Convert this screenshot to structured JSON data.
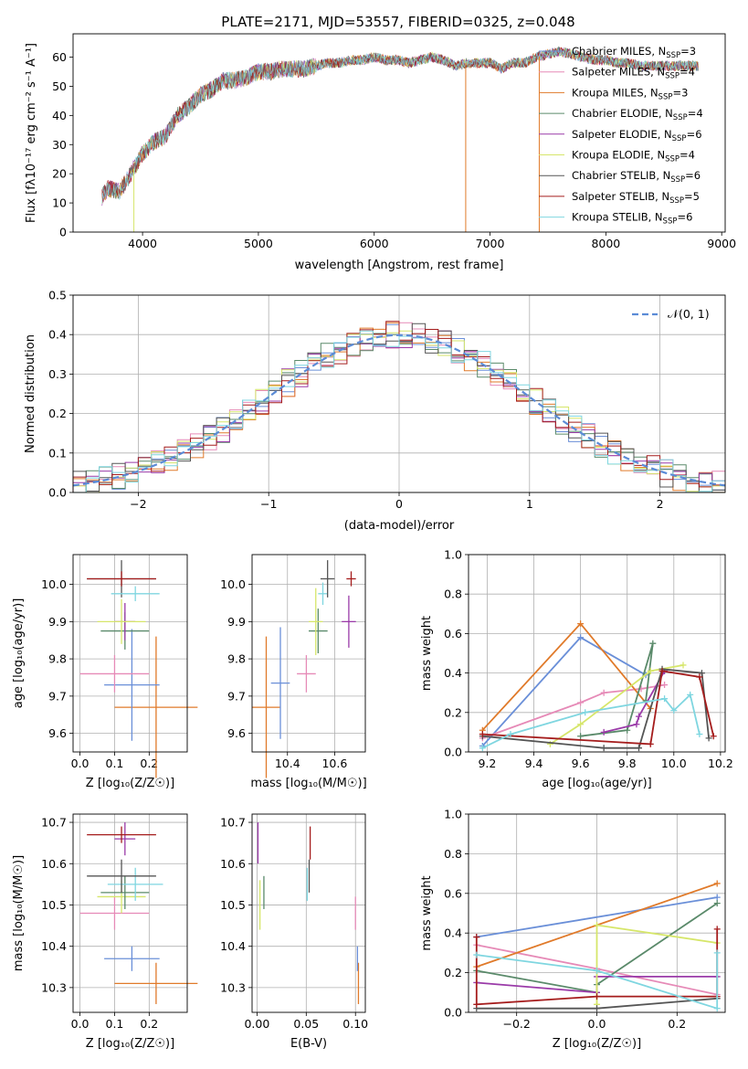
{
  "chart_data": [
    {
      "id": "spectrum",
      "type": "line",
      "title": "PLATE=2171, MJD=53557, FIBERID=0325, z=0.048",
      "xlabel": "wavelength [Angstrom, rest frame]",
      "ylabel": "Flux [fλ10⁻¹⁷ erg cm⁻² s⁻¹ A⁻¹]",
      "xlim": [
        3400,
        9030
      ],
      "ylim": [
        0,
        68
      ],
      "xticks": [
        4000,
        5000,
        6000,
        7000,
        8000,
        9000
      ],
      "yticks": [
        0,
        10,
        20,
        30,
        40,
        50,
        60
      ],
      "x_anchor": [
        3650,
        3700,
        3800,
        3900,
        4000,
        4100,
        4200,
        4300,
        4400,
        4500,
        4600,
        4700,
        4800,
        4900,
        5000,
        5100,
        5200,
        5300,
        5400,
        5500,
        5600,
        5700,
        5800,
        5900,
        6000,
        6100,
        6200,
        6300,
        6400,
        6500,
        6600,
        6700,
        6800,
        6900,
        7000,
        7100,
        7200,
        7300,
        7400,
        7500,
        7600,
        7700,
        7800,
        7900,
        8000,
        8100,
        8200,
        8300,
        8400,
        8500,
        8600,
        8700,
        8800
      ],
      "y_anchor": [
        12,
        15,
        14,
        20,
        27,
        31,
        33,
        40,
        43,
        47,
        49,
        52,
        52,
        53,
        55,
        55,
        56,
        56,
        56,
        57,
        58,
        58,
        59,
        59,
        60,
        59,
        59,
        58,
        59,
        60,
        59,
        57,
        58,
        58,
        58,
        56,
        58,
        58,
        60,
        61,
        62,
        61,
        60,
        59,
        59,
        58,
        58,
        57,
        57,
        57,
        57,
        57,
        57
      ],
      "dips": [
        {
          "x": 3925,
          "y": 0,
          "series": "Kroupa ELODIE"
        },
        {
          "x": 6790,
          "y": 0,
          "series": "Kroupa MILES"
        },
        {
          "x": 7425,
          "y": 0,
          "series": "Kroupa MILES"
        }
      ],
      "legend_position": "upper-right",
      "series": [
        {
          "name": "Chabrier MILES, N",
          "sub": "SSP",
          "val": "=3",
          "color": "#6a8fd8"
        },
        {
          "name": "Salpeter MILES, N",
          "sub": "SSP",
          "val": "=4",
          "color": "#e68ab7"
        },
        {
          "name": "Kroupa MILES, N",
          "sub": "SSP",
          "val": "=3",
          "color": "#e07a2a"
        },
        {
          "name": "Chabrier ELODIE, N",
          "sub": "SSP",
          "val": "=4",
          "color": "#5a8a6a"
        },
        {
          "name": "Salpeter ELODIE, N",
          "sub": "SSP",
          "val": "=6",
          "color": "#9a3aa8"
        },
        {
          "name": "Kroupa ELODIE, N",
          "sub": "SSP",
          "val": "=4",
          "color": "#d6e66a"
        },
        {
          "name": "Chabrier STELIB, N",
          "sub": "SSP",
          "val": "=6",
          "color": "#555555"
        },
        {
          "name": "Salpeter STELIB, N",
          "sub": "SSP",
          "val": "=5",
          "color": "#a51c1c"
        },
        {
          "name": "Kroupa STELIB, N",
          "sub": "SSP",
          "val": "=6",
          "color": "#7fd6e0"
        }
      ]
    },
    {
      "id": "residuals",
      "type": "line",
      "xlabel": "(data-model)/error",
      "ylabel": "Normed distribution",
      "xlim": [
        -2.5,
        2.5
      ],
      "ylim": [
        0,
        0.5
      ],
      "xticks": [
        -2,
        -1,
        0,
        1,
        2
      ],
      "yticks": [
        0.0,
        0.1,
        0.2,
        0.3,
        0.4,
        0.5
      ],
      "grid": true,
      "bins": {
        "start": -2.5,
        "width": 0.1,
        "count": 50
      },
      "legend_label": "𝒩(0, 1)",
      "legend_position": "upper-right",
      "gaussian": {
        "mu": 0,
        "sigma": 1,
        "color": "#5b8bd6",
        "style": "dashed"
      }
    },
    {
      "id": "age-vs-Z",
      "type": "scatter",
      "xlabel": "Z [log₁₀(Z/Z☉)]",
      "ylabel": "age  [log₁₀(age/yr)]",
      "xlim": [
        -0.02,
        0.31
      ],
      "ylim": [
        9.55,
        10.08
      ],
      "xticks": [
        0.0,
        0.1,
        0.2
      ],
      "yticks": [
        9.6,
        9.7,
        9.8,
        9.9,
        10.0
      ],
      "grid": true,
      "points": [
        {
          "x": 0.22,
          "y": 9.67,
          "dx": 0.12,
          "dy": 0.19,
          "color": "#e07a2a"
        },
        {
          "x": 0.15,
          "y": 9.73,
          "dx": 0.08,
          "dy": 0.15,
          "color": "#6a8fd8"
        },
        {
          "x": 0.1,
          "y": 9.76,
          "dx": 0.1,
          "dy": 0.05,
          "color": "#e68ab7"
        },
        {
          "x": 0.13,
          "y": 9.875,
          "dx": 0.07,
          "dy": 0.05,
          "color": "#5a8a6a"
        },
        {
          "x": 0.13,
          "y": 9.9,
          "dx": 0.03,
          "dy": 0.05,
          "color": "#9a3aa8"
        },
        {
          "x": 0.12,
          "y": 9.9,
          "dx": 0.07,
          "dy": 0.06,
          "color": "#d6e66a"
        },
        {
          "x": 0.12,
          "y": 10.015,
          "dx": 0.1,
          "dy": 0.05,
          "color": "#555555"
        },
        {
          "x": 0.12,
          "y": 10.015,
          "dx": 0.1,
          "dy": 0.02,
          "color": "#a51c1c"
        },
        {
          "x": 0.16,
          "y": 9.975,
          "dx": 0.07,
          "dy": 0.02,
          "color": "#7fd6e0"
        }
      ]
    },
    {
      "id": "age-vs-mass",
      "type": "scatter",
      "xlabel": "mass [log₁₀(M/M☉)]",
      "xlim": [
        10.25,
        10.73
      ],
      "ylim": [
        9.55,
        10.08
      ],
      "xticks": [
        10.4,
        10.6
      ],
      "yticks": [
        9.6,
        9.7,
        9.8,
        9.9,
        10.0
      ],
      "grid": true,
      "points": [
        {
          "x": 10.31,
          "y": 9.67,
          "dx": 0.06,
          "dy": 0.19,
          "color": "#e07a2a"
        },
        {
          "x": 10.37,
          "y": 9.735,
          "dx": 0.04,
          "dy": 0.15,
          "color": "#6a8fd8"
        },
        {
          "x": 10.48,
          "y": 9.76,
          "dx": 0.04,
          "dy": 0.05,
          "color": "#e68ab7"
        },
        {
          "x": 10.53,
          "y": 9.875,
          "dx": 0.04,
          "dy": 0.06,
          "color": "#5a8a6a"
        },
        {
          "x": 10.52,
          "y": 9.9,
          "dx": 0.03,
          "dy": 0.09,
          "color": "#d6e66a"
        },
        {
          "x": 10.66,
          "y": 9.9,
          "dx": 0.03,
          "dy": 0.07,
          "color": "#9a3aa8"
        },
        {
          "x": 10.55,
          "y": 9.975,
          "dx": 0.02,
          "dy": 0.03,
          "color": "#7fd6e0"
        },
        {
          "x": 10.57,
          "y": 10.015,
          "dx": 0.03,
          "dy": 0.05,
          "color": "#555555"
        },
        {
          "x": 10.67,
          "y": 10.015,
          "dx": 0.02,
          "dy": 0.02,
          "color": "#a51c1c"
        }
      ]
    },
    {
      "id": "mass-weight-vs-age",
      "type": "line",
      "xlabel": "age  [log₁₀(age/yr)]",
      "ylabel": "mass weight",
      "xlim": [
        9.12,
        10.22
      ],
      "ylim": [
        0,
        1
      ],
      "xticks": [
        9.2,
        9.4,
        9.6,
        9.8,
        10.0,
        10.2
      ],
      "yticks": [
        0.0,
        0.2,
        0.4,
        0.6,
        0.8,
        1.0
      ],
      "grid": true,
      "series": [
        {
          "color": "#6a8fd8",
          "x": [
            9.18,
            9.6,
            9.88
          ],
          "y": [
            0.03,
            0.58,
            0.39
          ]
        },
        {
          "color": "#e68ab7",
          "x": [
            9.18,
            9.6,
            9.7,
            9.86,
            9.96
          ],
          "y": [
            0.07,
            0.25,
            0.3,
            0.32,
            0.34
          ]
        },
        {
          "color": "#e07a2a",
          "x": [
            9.18,
            9.6,
            9.9
          ],
          "y": [
            0.11,
            0.65,
            0.22
          ]
        },
        {
          "color": "#5a8a6a",
          "x": [
            9.6,
            9.8,
            9.91,
            9.88
          ],
          "y": [
            0.08,
            0.11,
            0.55,
            0.26
          ]
        },
        {
          "color": "#9a3aa8",
          "x": [
            9.7,
            9.84,
            9.85,
            9.96
          ],
          "y": [
            0.1,
            0.14,
            0.18,
            0.41
          ]
        },
        {
          "color": "#d6e66a",
          "x": [
            9.47,
            9.6,
            9.9,
            10.04
          ],
          "y": [
            0.04,
            0.14,
            0.41,
            0.44
          ]
        },
        {
          "color": "#555555",
          "x": [
            9.18,
            9.7,
            9.85,
            9.95,
            10.12,
            10.15
          ],
          "y": [
            0.08,
            0.02,
            0.02,
            0.42,
            0.4,
            0.07
          ]
        },
        {
          "color": "#a51c1c",
          "x": [
            9.18,
            9.9,
            9.95,
            10.11,
            10.17
          ],
          "y": [
            0.09,
            0.04,
            0.41,
            0.38,
            0.08
          ]
        },
        {
          "color": "#7fd6e0",
          "x": [
            9.18,
            9.3,
            9.62,
            9.96,
            10.0,
            10.07,
            10.11
          ],
          "y": [
            0.02,
            0.09,
            0.2,
            0.27,
            0.21,
            0.29,
            0.09
          ]
        }
      ]
    },
    {
      "id": "mass-vs-Z",
      "type": "scatter",
      "xlabel": "Z [log₁₀(Z/Z☉)]",
      "ylabel": "mass [log₁₀(M/M☉)]",
      "xlim": [
        -0.02,
        0.31
      ],
      "ylim": [
        10.24,
        10.72
      ],
      "xticks": [
        0.0,
        0.1,
        0.2
      ],
      "yticks": [
        10.3,
        10.4,
        10.5,
        10.6,
        10.7
      ],
      "grid": true,
      "points": [
        {
          "x": 0.22,
          "y": 10.31,
          "dx": 0.12,
          "dy": 0.05,
          "color": "#e07a2a"
        },
        {
          "x": 0.15,
          "y": 10.37,
          "dx": 0.08,
          "dy": 0.03,
          "color": "#6a8fd8"
        },
        {
          "x": 0.1,
          "y": 10.48,
          "dx": 0.1,
          "dy": 0.04,
          "color": "#e68ab7"
        },
        {
          "x": 0.12,
          "y": 10.52,
          "dx": 0.07,
          "dy": 0.04,
          "color": "#d6e66a"
        },
        {
          "x": 0.13,
          "y": 10.53,
          "dx": 0.07,
          "dy": 0.04,
          "color": "#5a8a6a"
        },
        {
          "x": 0.16,
          "y": 10.55,
          "dx": 0.08,
          "dy": 0.04,
          "color": "#7fd6e0"
        },
        {
          "x": 0.12,
          "y": 10.57,
          "dx": 0.1,
          "dy": 0.04,
          "color": "#555555"
        },
        {
          "x": 0.13,
          "y": 10.66,
          "dx": 0.03,
          "dy": 0.04,
          "color": "#9a3aa8"
        },
        {
          "x": 0.12,
          "y": 10.67,
          "dx": 0.1,
          "dy": 0.02,
          "color": "#a51c1c"
        }
      ]
    },
    {
      "id": "mass-vs-EBV",
      "type": "scatter",
      "xlabel": "E(B-V)",
      "xlim": [
        -0.005,
        0.11
      ],
      "ylim": [
        10.24,
        10.72
      ],
      "xticks": [
        0.0,
        0.05,
        0.1
      ],
      "yticks": [
        10.3,
        10.4,
        10.5,
        10.6,
        10.7
      ],
      "grid": true,
      "points": [
        {
          "x": 0.103,
          "y": 10.31,
          "dx": 0,
          "dy": 0.05,
          "color": "#e07a2a"
        },
        {
          "x": 0.102,
          "y": 10.37,
          "dx": 0,
          "dy": 0.03,
          "color": "#6a8fd8"
        },
        {
          "x": 0.1,
          "y": 10.48,
          "dx": 0,
          "dy": 0.04,
          "color": "#e68ab7"
        },
        {
          "x": 0.003,
          "y": 10.5,
          "dx": 0,
          "dy": 0.06,
          "color": "#d6e66a"
        },
        {
          "x": 0.007,
          "y": 10.53,
          "dx": 0,
          "dy": 0.04,
          "color": "#5a8a6a"
        },
        {
          "x": 0.051,
          "y": 10.55,
          "dx": 0,
          "dy": 0.04,
          "color": "#7fd6e0"
        },
        {
          "x": 0.053,
          "y": 10.57,
          "dx": 0,
          "dy": 0.04,
          "color": "#555555"
        },
        {
          "x": 0.001,
          "y": 10.65,
          "dx": 0,
          "dy": 0.05,
          "color": "#9a3aa8"
        },
        {
          "x": 0.054,
          "y": 10.65,
          "dx": 0,
          "dy": 0.04,
          "color": "#a51c1c"
        }
      ]
    },
    {
      "id": "mass-weight-vs-Z",
      "type": "line",
      "xlabel": "Z [log₁₀(Z/Z☉)]",
      "ylabel": "mass weight",
      "xlim": [
        -0.32,
        0.32
      ],
      "ylim": [
        0,
        1
      ],
      "xticks": [
        -0.2,
        0.0,
        0.2
      ],
      "yticks": [
        0.0,
        0.2,
        0.4,
        0.6,
        0.8,
        1.0
      ],
      "grid": true,
      "series": [
        {
          "color": "#6a8fd8",
          "x": [
            -0.3,
            0.3
          ],
          "y": [
            0.38,
            0.58
          ]
        },
        {
          "color": "#e68ab7",
          "x": [
            -0.3,
            0.0,
            0.3
          ],
          "y": [
            0.34,
            0.22,
            0.09
          ]
        },
        {
          "color": "#e07a2a",
          "x": [
            -0.3,
            0.3
          ],
          "y": [
            0.23,
            0.65
          ]
        },
        {
          "color": "#5a8a6a",
          "x": [
            -0.3,
            0.0,
            0.0,
            0.3
          ],
          "y": [
            0.21,
            0.1,
            0.14,
            0.55
          ]
        },
        {
          "color": "#9a3aa8",
          "x": [
            -0.3,
            0.0,
            0.0,
            0.3
          ],
          "y": [
            0.15,
            0.1,
            0.18,
            0.18
          ]
        },
        {
          "color": "#d6e66a",
          "x": [
            0.0,
            0.0,
            0.3
          ],
          "y": [
            0.04,
            0.44,
            0.35
          ]
        },
        {
          "color": "#555555",
          "x": [
            -0.3,
            0.0,
            0.3
          ],
          "y": [
            0.02,
            0.02,
            0.07
          ]
        },
        {
          "color": "#a51c1c",
          "x": [
            -0.3,
            -0.3,
            0.0,
            0.3,
            0.3
          ],
          "y": [
            0.38,
            0.04,
            0.08,
            0.08,
            0.42
          ]
        },
        {
          "color": "#7fd6e0",
          "x": [
            -0.3,
            0.0,
            0.3,
            0.3
          ],
          "y": [
            0.29,
            0.21,
            0.02,
            0.3
          ]
        }
      ]
    }
  ]
}
